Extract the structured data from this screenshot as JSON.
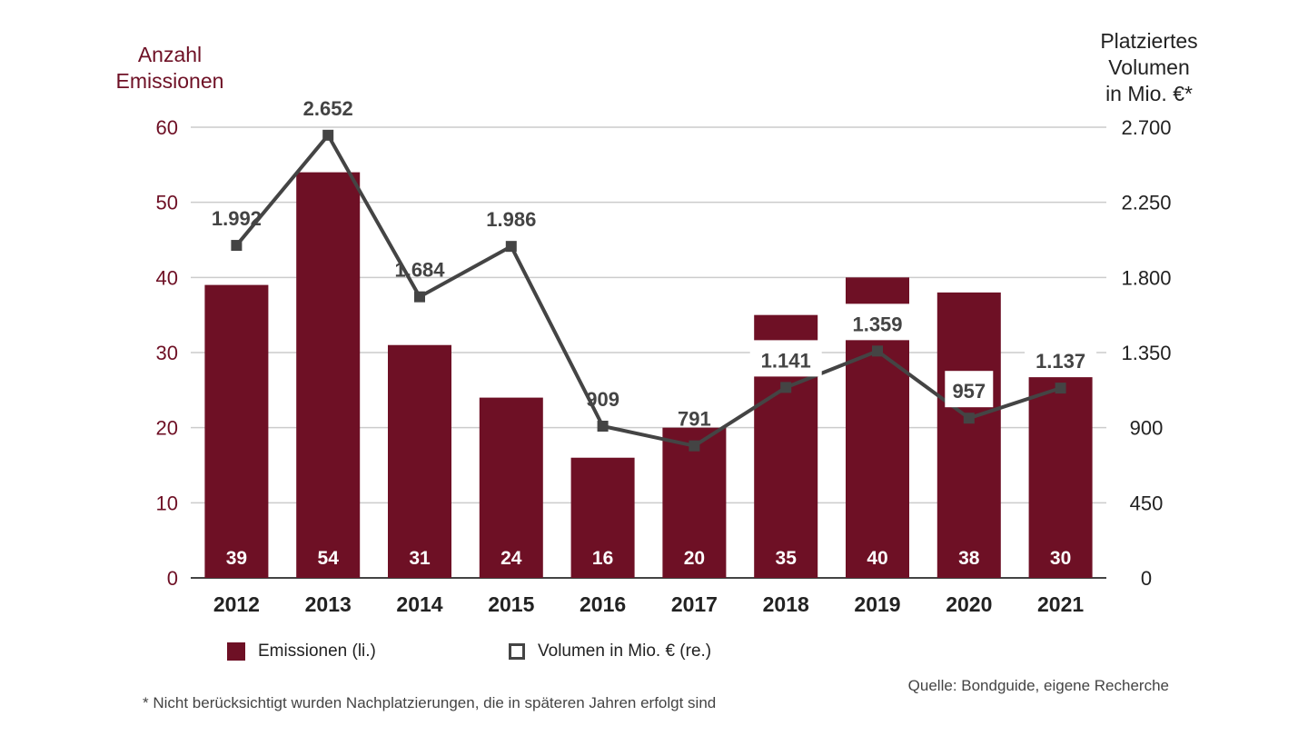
{
  "chart_data": {
    "type": "bar+line",
    "categories": [
      "2012",
      "2013",
      "2014",
      "2015",
      "2016",
      "2017",
      "2018",
      "2019",
      "2020",
      "2021"
    ],
    "series": [
      {
        "name": "Emissionen (li.)",
        "type": "bar",
        "axis": "left",
        "values": [
          39,
          54,
          31,
          24,
          16,
          20,
          35,
          40,
          38,
          30
        ],
        "labels": [
          "39",
          "54",
          "31",
          "24",
          "16",
          "20",
          "35",
          "40",
          "38",
          "30"
        ]
      },
      {
        "name": "Volumen in Mio. € (re.)",
        "type": "line",
        "axis": "right",
        "values": [
          1992,
          2652,
          1684,
          1986,
          909,
          791,
          1141,
          1359,
          957,
          1137
        ],
        "labels": [
          "1.992",
          "2.652",
          "1.684",
          "1.986",
          "909",
          "791",
          "1.141",
          "1.359",
          "957",
          "1.137"
        ]
      }
    ],
    "left_axis": {
      "title": "Anzahl\nEmissionen",
      "ylim": [
        0,
        60
      ],
      "ticks": [
        0,
        10,
        20,
        30,
        40,
        50,
        60
      ],
      "tick_labels": [
        "0",
        "10",
        "20",
        "30",
        "40",
        "50",
        "60"
      ]
    },
    "right_axis": {
      "title": "Platziertes\nVolumen\nin Mio. €*",
      "ylim": [
        0,
        2700
      ],
      "ticks": [
        0,
        450,
        900,
        1350,
        1800,
        2250,
        2700
      ],
      "tick_labels": [
        "0",
        "450",
        "900",
        "1.350",
        "1.800",
        "2.250",
        "2.700"
      ]
    },
    "grid": true,
    "legend_placement": "bottom",
    "colors": {
      "bars": "#6e1025",
      "line": "#444444",
      "left_axis": "#6e1025",
      "grid": "#cccccc"
    }
  },
  "footnote": "* Nicht berücksichtigt wurden Nachplatzierungen, die in späteren Jahren erfolgt sind",
  "source": "Quelle: Bondguide, eigene Recherche"
}
